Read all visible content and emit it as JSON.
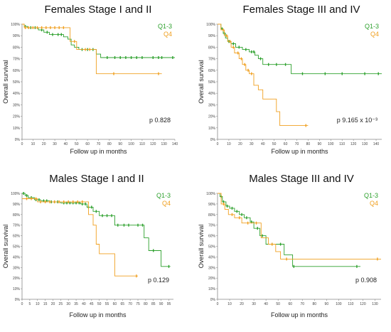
{
  "chart_data": [
    {
      "type": "line",
      "title": "Females Stage I and II",
      "xlabel": "Follow up in months",
      "ylabel": "Overall survival",
      "xticks": [
        "0",
        "10",
        "20",
        "30",
        "40",
        "50",
        "60",
        "70",
        "80",
        "90",
        "100",
        "110",
        "120",
        "130",
        "140"
      ],
      "yticks": [
        "0%",
        "10%",
        "20%",
        "30%",
        "40%",
        "50%",
        "60%",
        "70%",
        "80%",
        "90%",
        "100%"
      ],
      "xlim": [
        0,
        140
      ],
      "ylim": [
        0,
        100
      ],
      "p_label": "p 0.828",
      "legend_position": "top-right",
      "series": [
        {
          "name": "Q1-3",
          "color": "#2ca02c",
          "steps": [
            [
              0,
              100
            ],
            [
              2,
              98
            ],
            [
              5,
              97
            ],
            [
              15,
              95
            ],
            [
              20,
              93
            ],
            [
              25,
              91
            ],
            [
              38,
              89
            ],
            [
              42,
              87
            ],
            [
              45,
              82
            ],
            [
              48,
              80
            ],
            [
              52,
              78
            ],
            [
              68,
              74
            ],
            [
              72,
              71
            ],
            [
              140,
              71
            ]
          ],
          "censors": [
            3,
            8,
            12,
            18,
            23,
            28,
            33,
            36,
            55,
            60,
            65,
            78,
            85,
            90,
            95,
            100,
            105,
            110,
            120,
            125,
            128,
            138
          ]
        },
        {
          "name": "Q4",
          "color": "#f0a020",
          "steps": [
            [
              0,
              100
            ],
            [
              2,
              97
            ],
            [
              40,
              97
            ],
            [
              44,
              85
            ],
            [
              50,
              78
            ],
            [
              68,
              57
            ],
            [
              128,
              57
            ]
          ],
          "censors": [
            3,
            6,
            10,
            14,
            18,
            22,
            26,
            30,
            34,
            38,
            48,
            58,
            62,
            84,
            125
          ]
        }
      ]
    },
    {
      "type": "line",
      "title": "Females Stage III and IV",
      "xlabel": "Follow up in months",
      "ylabel": "Overall survival",
      "xticks": [
        "0",
        "10",
        "20",
        "30",
        "40",
        "50",
        "60",
        "70",
        "80",
        "90",
        "100",
        "110",
        "120",
        "130",
        "140"
      ],
      "yticks": [
        "0%",
        "10%",
        "20%",
        "30%",
        "40%",
        "50%",
        "60%",
        "70%",
        "80%",
        "90%",
        "100%"
      ],
      "xlim": [
        0,
        145
      ],
      "ylim": [
        0,
        100
      ],
      "p_label": "p 9.165 x 10⁻³",
      "legend_position": "top-right",
      "series": [
        {
          "name": "Q1-3",
          "color": "#2ca02c",
          "steps": [
            [
              0,
              100
            ],
            [
              3,
              96
            ],
            [
              5,
              92
            ],
            [
              7,
              88
            ],
            [
              9,
              85
            ],
            [
              12,
              83
            ],
            [
              16,
              80
            ],
            [
              22,
              78
            ],
            [
              28,
              76
            ],
            [
              33,
              73
            ],
            [
              36,
              70
            ],
            [
              40,
              65
            ],
            [
              65,
              57
            ],
            [
              145,
              57
            ]
          ],
          "censors": [
            4,
            6,
            10,
            14,
            19,
            25,
            30,
            32,
            38,
            45,
            52,
            60,
            75,
            95,
            110,
            130,
            142
          ]
        },
        {
          "name": "Q4",
          "color": "#f0a020",
          "steps": [
            [
              0,
              100
            ],
            [
              3,
              95
            ],
            [
              6,
              90
            ],
            [
              9,
              85
            ],
            [
              12,
              80
            ],
            [
              15,
              75
            ],
            [
              19,
              70
            ],
            [
              22,
              65
            ],
            [
              25,
              60
            ],
            [
              28,
              57
            ],
            [
              32,
              47
            ],
            [
              36,
              43
            ],
            [
              40,
              35
            ],
            [
              52,
              24
            ],
            [
              55,
              12
            ],
            [
              80,
              12
            ]
          ],
          "censors": [
            5,
            8,
            11,
            14,
            18,
            21,
            24,
            27,
            30,
            78
          ]
        }
      ]
    },
    {
      "type": "line",
      "title": "Males Stage I and II",
      "xlabel": "Follow up in months",
      "ylabel": "Overall survival",
      "xticks": [
        "0",
        "5",
        "10",
        "15",
        "20",
        "25",
        "30",
        "35",
        "40",
        "45",
        "50",
        "55",
        "60",
        "65",
        "70",
        "75",
        "80",
        "85",
        "90",
        "95"
      ],
      "yticks": [
        "0%",
        "10%",
        "20%",
        "30%",
        "40%",
        "50%",
        "60%",
        "70%",
        "80%",
        "90%",
        "100%"
      ],
      "xlim": [
        0,
        98
      ],
      "ylim": [
        0,
        100
      ],
      "p_label": "p 0.129",
      "legend_position": "top-right",
      "series": [
        {
          "name": "Q1-3",
          "color": "#2ca02c",
          "steps": [
            [
              0,
              100
            ],
            [
              2,
              98
            ],
            [
              4,
              96
            ],
            [
              8,
              94
            ],
            [
              12,
              93
            ],
            [
              18,
              92
            ],
            [
              25,
              91
            ],
            [
              38,
              90
            ],
            [
              42,
              87
            ],
            [
              46,
              83
            ],
            [
              50,
              79
            ],
            [
              60,
              70
            ],
            [
              79,
              58
            ],
            [
              82,
              46
            ],
            [
              90,
              31
            ],
            [
              96,
              31
            ]
          ],
          "censors": [
            1,
            3,
            6,
            9,
            11,
            14,
            16,
            19,
            21,
            23,
            27,
            29,
            31,
            33,
            35,
            37,
            39,
            41,
            43,
            45,
            48,
            52,
            55,
            58,
            62,
            66,
            69,
            75,
            78,
            85,
            95
          ]
        },
        {
          "name": "Q4",
          "color": "#f0a020",
          "steps": [
            [
              0,
              95
            ],
            [
              10,
              92
            ],
            [
              40,
              92
            ],
            [
              43,
              80
            ],
            [
              46,
              70
            ],
            [
              48,
              52
            ],
            [
              50,
              43
            ],
            [
              60,
              22
            ],
            [
              75,
              22
            ]
          ],
          "censors": [
            3,
            6,
            9,
            12,
            15,
            18,
            21,
            24,
            27,
            30,
            33,
            36,
            39,
            74
          ]
        }
      ]
    },
    {
      "type": "line",
      "title": "Males Stage III and IV",
      "xlabel": "Follow up in months",
      "ylabel": "Overall survival",
      "xticks": [
        "0",
        "10",
        "20",
        "30",
        "40",
        "50",
        "60",
        "70",
        "80",
        "90",
        "100",
        "110",
        "120",
        "130"
      ],
      "yticks": [
        "0%",
        "10%",
        "20%",
        "30%",
        "40%",
        "50%",
        "60%",
        "70%",
        "80%",
        "90%",
        "100%"
      ],
      "xlim": [
        0,
        135
      ],
      "ylim": [
        0,
        100
      ],
      "p_label": "p 0.908",
      "legend_position": "top-right",
      "series": [
        {
          "name": "Q1-3",
          "color": "#2ca02c",
          "steps": [
            [
              0,
              100
            ],
            [
              2,
              97
            ],
            [
              4,
              92
            ],
            [
              7,
              88
            ],
            [
              10,
              86
            ],
            [
              14,
              83
            ],
            [
              18,
              80
            ],
            [
              22,
              77
            ],
            [
              27,
              73
            ],
            [
              30,
              67
            ],
            [
              35,
              60
            ],
            [
              40,
              52
            ],
            [
              48,
              52
            ],
            [
              55,
              42
            ],
            [
              62,
              31
            ],
            [
              118,
              31
            ]
          ],
          "censors": [
            3,
            5,
            8,
            12,
            16,
            20,
            24,
            28,
            33,
            37,
            45,
            52,
            63,
            115
          ]
        },
        {
          "name": "Q4",
          "color": "#f0a020",
          "steps": [
            [
              0,
              100
            ],
            [
              3,
              90
            ],
            [
              6,
              85
            ],
            [
              9,
              80
            ],
            [
              14,
              77
            ],
            [
              20,
              72
            ],
            [
              30,
              72
            ],
            [
              36,
              58
            ],
            [
              42,
              52
            ],
            [
              48,
              45
            ],
            [
              52,
              38
            ],
            [
              135,
              38
            ]
          ],
          "censors": [
            5,
            12,
            18,
            25,
            32,
            45,
            57,
            132
          ]
        }
      ]
    }
  ]
}
